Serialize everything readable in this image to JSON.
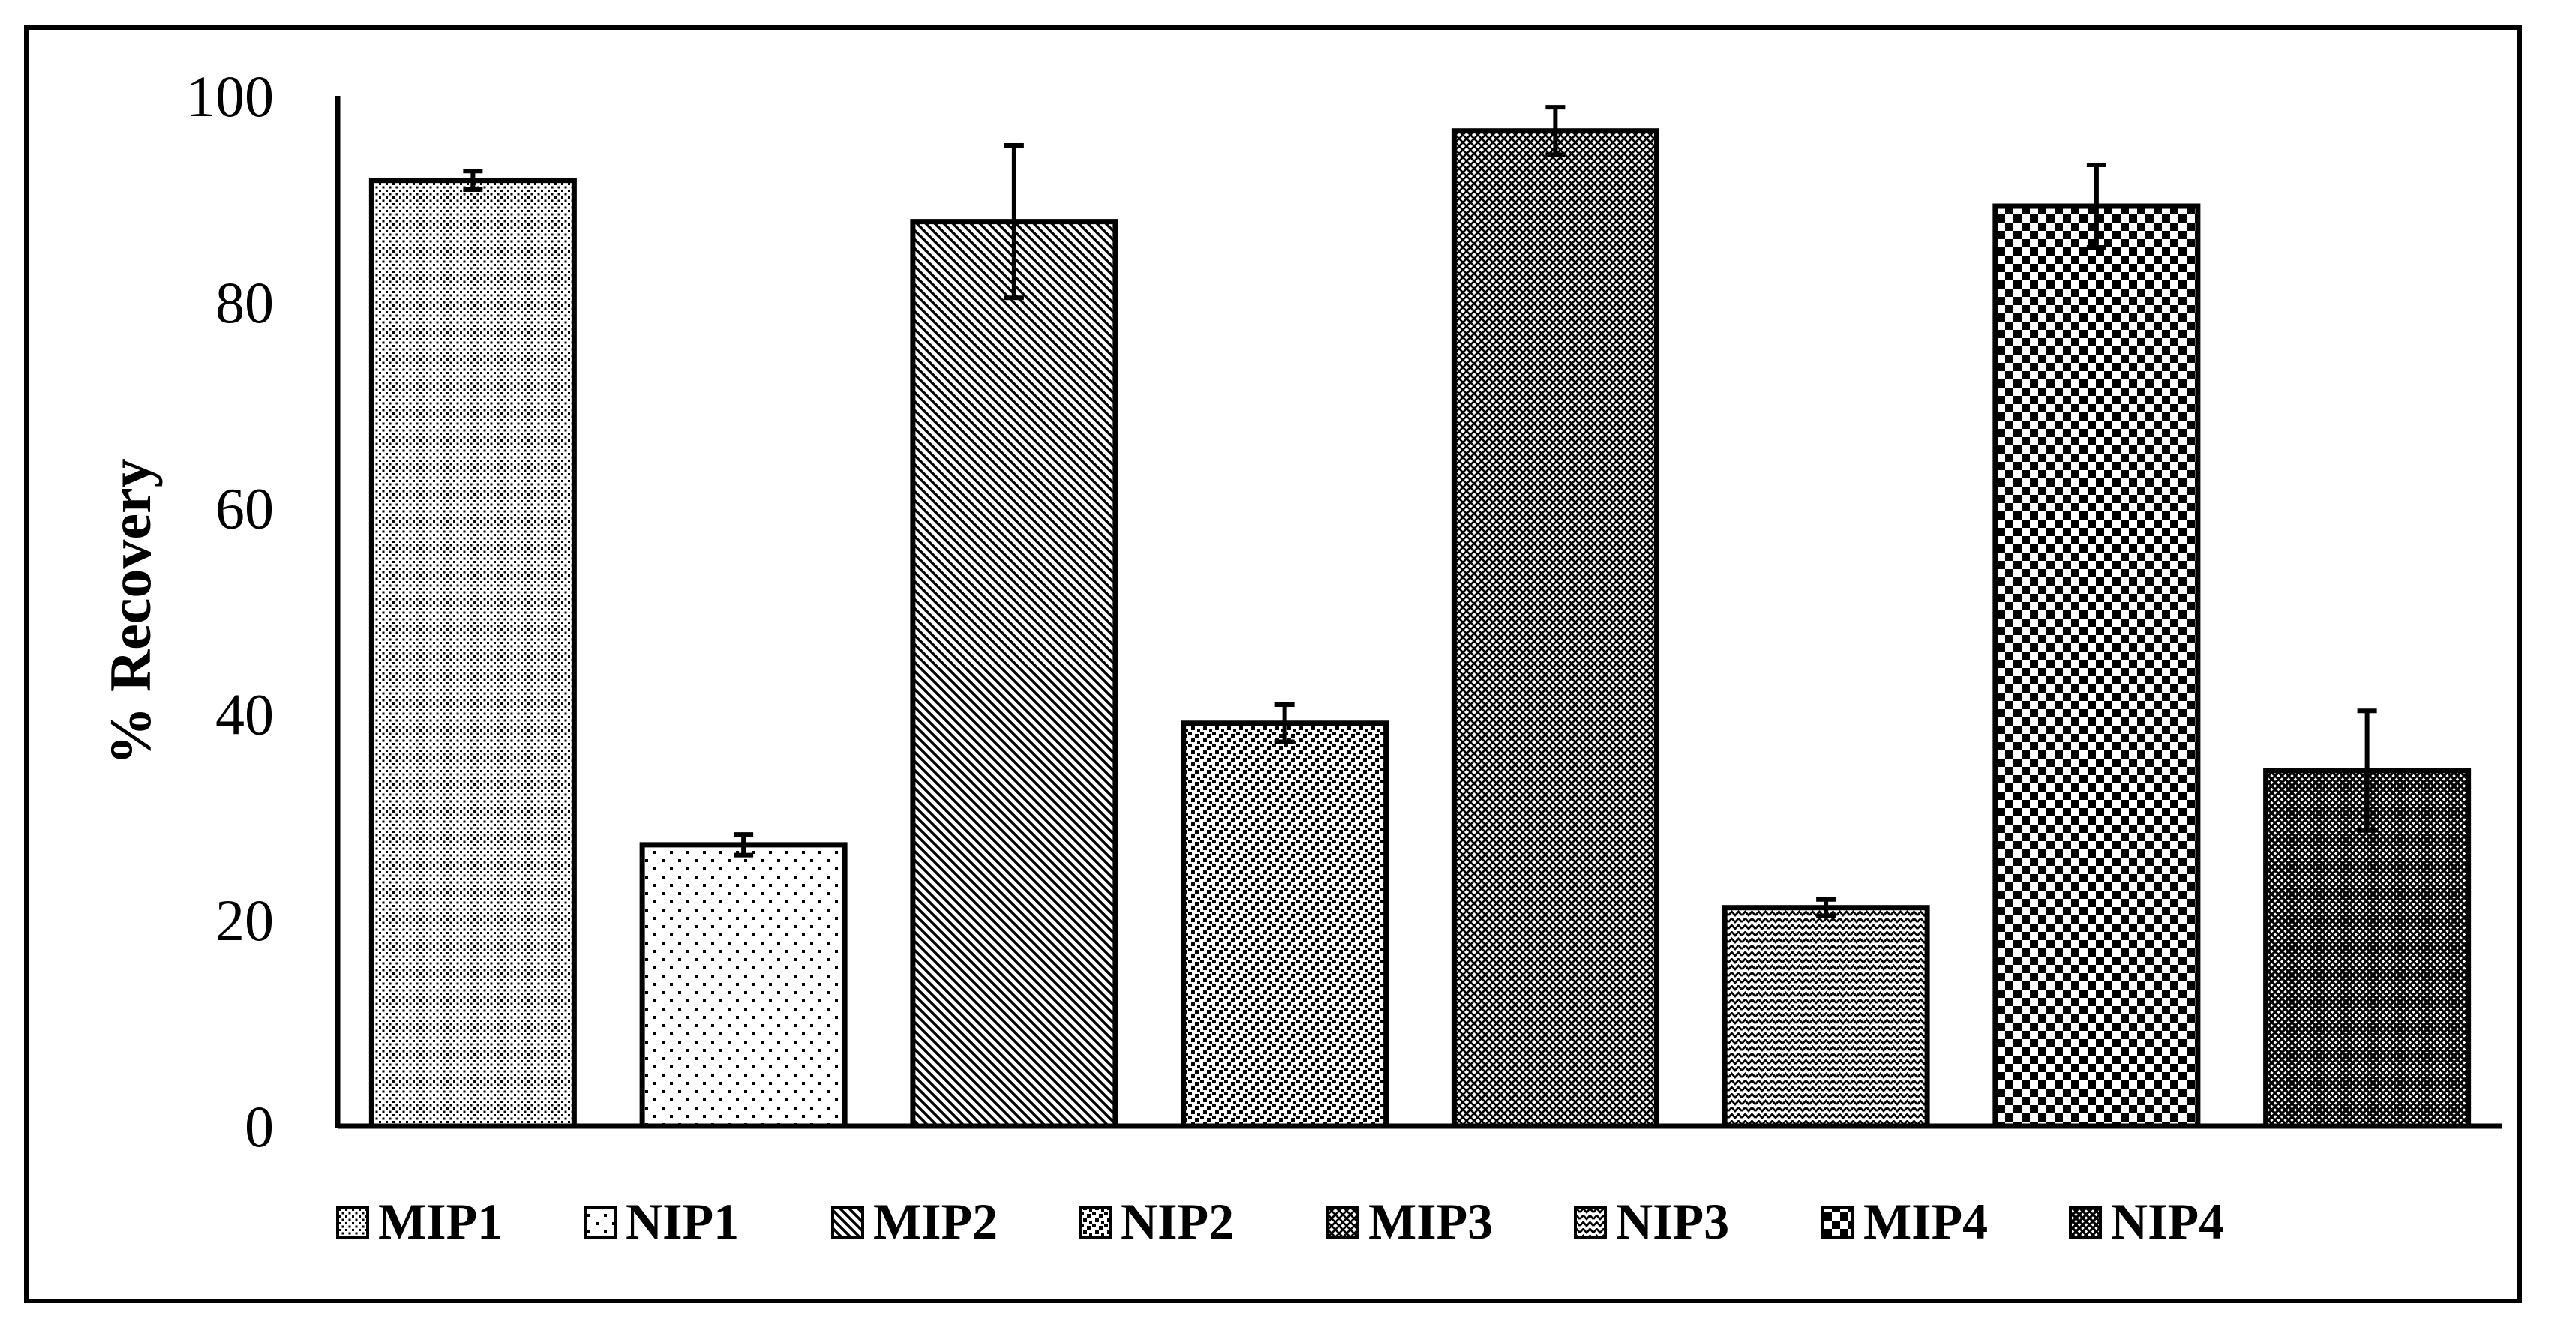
{
  "chart_data": {
    "type": "bar",
    "title": "",
    "xlabel": "",
    "ylabel": "% Recovery",
    "ylim": [
      0,
      100
    ],
    "yticks": [
      0,
      20,
      40,
      60,
      80,
      100
    ],
    "grid": false,
    "legend_position": "bottom",
    "categories": [
      "MIP1",
      "NIP1",
      "MIP2",
      "NIP2",
      "MIP3",
      "NIP3",
      "MIP4",
      "NIP4"
    ],
    "values": [
      91.8,
      27.3,
      87.8,
      39.1,
      96.6,
      21.2,
      89.3,
      34.5
    ],
    "error": [
      0.9,
      1.0,
      7.4,
      1.8,
      2.3,
      0.8,
      4.0,
      5.8
    ],
    "patterns": [
      "fine-dots",
      "sparse-dots",
      "diagonal-lines",
      "random-squares",
      "fine-grid",
      "zigzag",
      "checkerboard",
      "dense-grid"
    ],
    "colors": {
      "bar_fill": "#ffffff",
      "pattern": "#000000",
      "outline": "#000000"
    }
  }
}
